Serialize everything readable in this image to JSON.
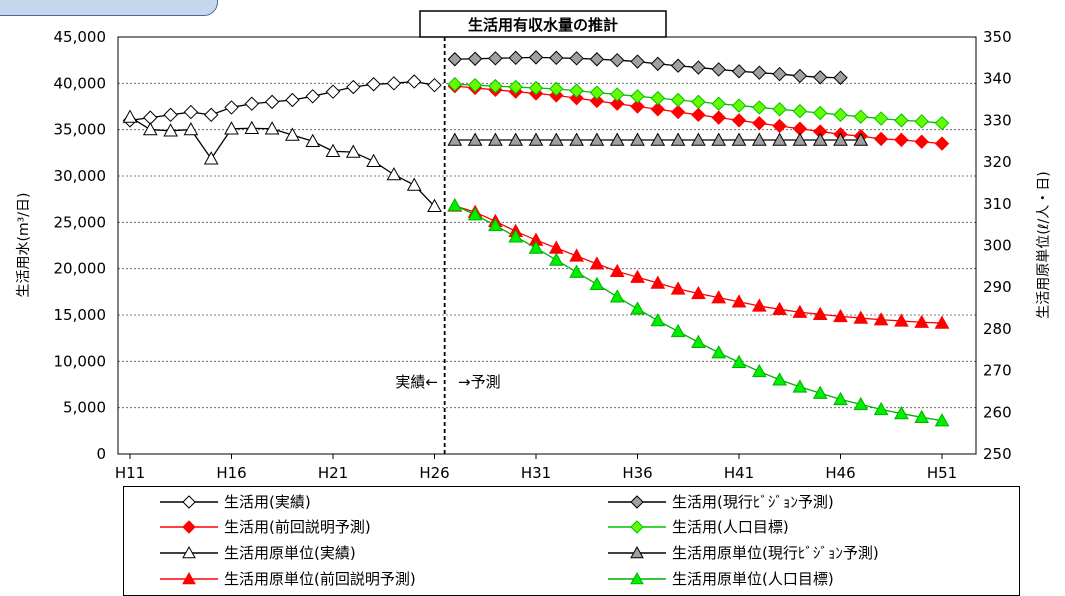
{
  "chart_data": {
    "type": "line",
    "title": "生活用有収水量の推計",
    "x_labels": [
      "H11",
      "H16",
      "H21",
      "H26",
      "H31",
      "H36",
      "H41",
      "H46",
      "H51"
    ],
    "y_left": {
      "label": "生活用水(m³/日)",
      "lim": [
        0,
        45000
      ],
      "ticks": [
        "0",
        "5,000",
        "10,000",
        "15,000",
        "20,000",
        "25,000",
        "30,000",
        "35,000",
        "40,000",
        "45,000"
      ]
    },
    "y_right": {
      "label": "生活用原単位(ℓ/人・日)",
      "lim": [
        250,
        350
      ],
      "ticks": [
        "250",
        "260",
        "270",
        "280",
        "290",
        "300",
        "310",
        "320",
        "330",
        "340",
        "350"
      ]
    },
    "grid": true,
    "legend_position": "bottom",
    "annotation": {
      "left": "実績←",
      "right": "→予測"
    },
    "series": [
      {
        "name": "生活用(実績)",
        "axis": "left",
        "marker": "diamond",
        "color": "#000000",
        "fill": "#ffffff",
        "start_year": 11,
        "values": [
          36000,
          36300,
          36600,
          36900,
          36600,
          37400,
          37800,
          38000,
          38200,
          38600,
          39100,
          39600,
          39900,
          40000,
          40200,
          39800
        ]
      },
      {
        "name": "生活用(現行ﾋﾞｼﾞｮﾝ予測)",
        "axis": "left",
        "marker": "diamond",
        "color": "#000000",
        "fill": "#a0a0a0",
        "start_year": 27,
        "values": [
          42600,
          42650,
          42700,
          42750,
          42800,
          42750,
          42700,
          42600,
          42500,
          42350,
          42100,
          41900,
          41700,
          41500,
          41300,
          41150,
          41000,
          40800,
          40650,
          40600
        ]
      },
      {
        "name": "生活用(前回説明予測)",
        "axis": "left",
        "marker": "diamond",
        "color": "#ff0000",
        "fill": "#ff0000",
        "start_year": 27,
        "values": [
          39700,
          39500,
          39300,
          39100,
          38900,
          38700,
          38400,
          38100,
          37800,
          37500,
          37200,
          36900,
          36600,
          36300,
          36000,
          35700,
          35400,
          35100,
          34800,
          34500,
          34300,
          34000,
          33900,
          33700,
          33500
        ]
      },
      {
        "name": "生活用(人口目標)",
        "axis": "left",
        "marker": "diamond",
        "color": "#00c000",
        "fill": "#66ff00",
        "start_year": 27,
        "values": [
          39900,
          39800,
          39700,
          39600,
          39500,
          39400,
          39200,
          39000,
          38800,
          38600,
          38400,
          38200,
          38000,
          37800,
          37600,
          37400,
          37200,
          37000,
          36800,
          36600,
          36400,
          36200,
          36000,
          35900,
          35700
        ]
      },
      {
        "name": "生活用原単位(実績)",
        "axis": "right",
        "marker": "triangle",
        "color": "#000000",
        "fill": "#ffffff",
        "start_year": 11,
        "values": [
          330.8,
          327.8,
          327.5,
          327.8,
          320.8,
          328.0,
          328.1,
          328.0,
          326.5,
          325.0,
          322.6,
          322.4,
          320.2,
          317.0,
          314.5,
          309.4
        ]
      },
      {
        "name": "生活用原単位(現行ﾋﾞｼﾞｮﾝ予測)",
        "axis": "right",
        "marker": "triangle",
        "color": "#000000",
        "fill": "#a0a0a0",
        "start_year": 27,
        "values": [
          325.3,
          325.3,
          325.3,
          325.3,
          325.3,
          325.3,
          325.3,
          325.3,
          325.3,
          325.3,
          325.3,
          325.3,
          325.3,
          325.3,
          325.3,
          325.3,
          325.3,
          325.3,
          325.3,
          325.3,
          325.3
        ]
      },
      {
        "name": "生活用原単位(前回説明予測)",
        "axis": "right",
        "marker": "triangle",
        "color": "#ff0000",
        "fill": "#ff0000",
        "start_year": 27,
        "values": [
          309.5,
          308.0,
          305.8,
          303.4,
          301.3,
          299.4,
          297.5,
          295.6,
          293.8,
          292.4,
          291.0,
          289.6,
          288.5,
          287.5,
          286.5,
          285.5,
          284.7,
          284.0,
          283.5,
          283.0,
          282.6,
          282.2,
          281.9,
          281.6,
          281.4
        ]
      },
      {
        "name": "生活用原単位(人口目標)",
        "axis": "right",
        "marker": "triangle",
        "color": "#00b000",
        "fill": "#00ee00",
        "start_year": 27,
        "values": [
          309.6,
          307.4,
          304.8,
          302.1,
          299.4,
          296.5,
          293.6,
          290.7,
          287.7,
          284.8,
          282.0,
          279.4,
          276.8,
          274.3,
          272.0,
          269.8,
          267.8,
          266.1,
          264.6,
          263.1,
          261.9,
          260.7,
          259.7,
          258.8,
          258.0
        ]
      }
    ]
  }
}
